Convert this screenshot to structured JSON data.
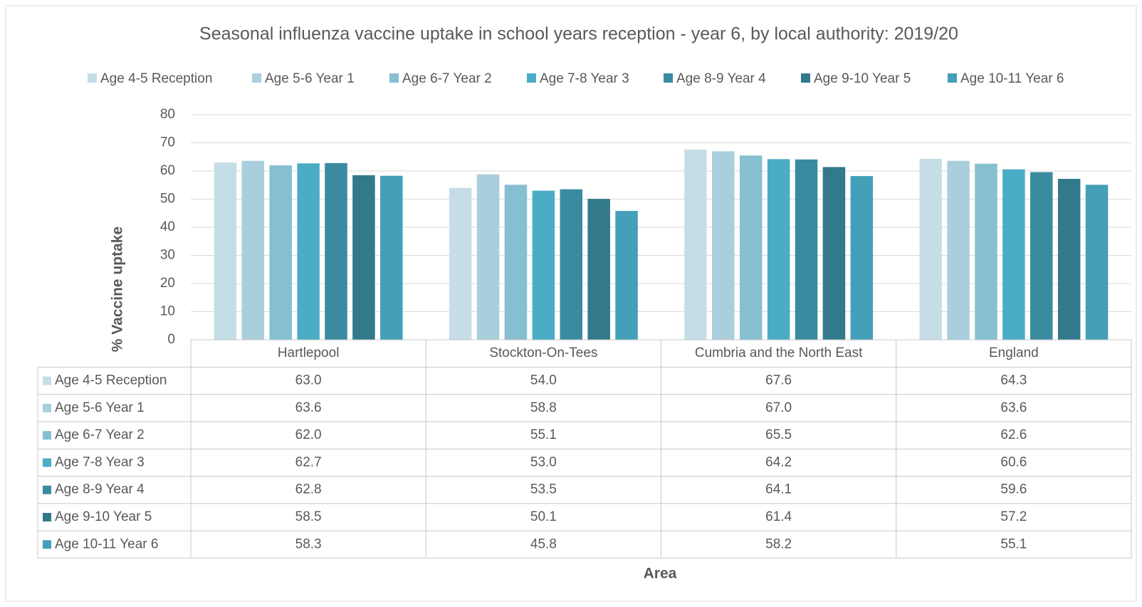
{
  "chart_data": {
    "type": "bar",
    "title": "Seasonal influenza vaccine uptake in school years reception - year 6, by local authority: 2019/20",
    "x_label": "Area",
    "y_label": "% Vaccine uptake",
    "categories": [
      "Hartlepool",
      "Stockton-On-Tees",
      "Cumbria and the North East",
      "England"
    ],
    "series": [
      {
        "name": "Age 4-5 Reception",
        "color": "#c5dde6",
        "values": [
          63.0,
          54.0,
          67.6,
          64.3
        ],
        "value_labels": [
          "63.0",
          "54.0",
          "67.6",
          "64.3"
        ]
      },
      {
        "name": "Age 5-6 Year 1",
        "color": "#aacfdc",
        "values": [
          63.6,
          58.8,
          67.0,
          63.6
        ],
        "value_labels": [
          "63.6",
          "58.8",
          "67.0",
          "63.6"
        ]
      },
      {
        "name": "Age 6-7 Year 2",
        "color": "#86bfd0",
        "values": [
          62.0,
          55.1,
          65.5,
          62.6
        ],
        "value_labels": [
          "62.0",
          "55.1",
          "65.5",
          "62.6"
        ]
      },
      {
        "name": "Age 7-8 Year 3",
        "color": "#4bacc6",
        "values": [
          62.7,
          53.0,
          64.2,
          60.6
        ],
        "value_labels": [
          "62.7",
          "53.0",
          "64.2",
          "60.6"
        ]
      },
      {
        "name": "Age 8-9 Year 4",
        "color": "#3a8ba0",
        "values": [
          62.8,
          53.5,
          64.1,
          59.6
        ],
        "value_labels": [
          "62.8",
          "53.5",
          "64.1",
          "59.6"
        ]
      },
      {
        "name": "Age 9-10 Year 5",
        "color": "#31798b",
        "values": [
          58.5,
          50.1,
          61.4,
          57.2
        ],
        "value_labels": [
          "58.5",
          "50.1",
          "61.4",
          "57.2"
        ]
      },
      {
        "name": "Age 10-11 Year 6",
        "color": "#449fb8",
        "values": [
          58.3,
          45.8,
          58.2,
          55.1
        ],
        "value_labels": [
          "58.3",
          "45.8",
          "58.2",
          "55.1"
        ]
      }
    ],
    "ylim": [
      0,
      80
    ],
    "yticks": [
      0,
      10,
      20,
      30,
      40,
      50,
      60,
      70,
      80
    ],
    "grid": true,
    "legend": "top"
  }
}
